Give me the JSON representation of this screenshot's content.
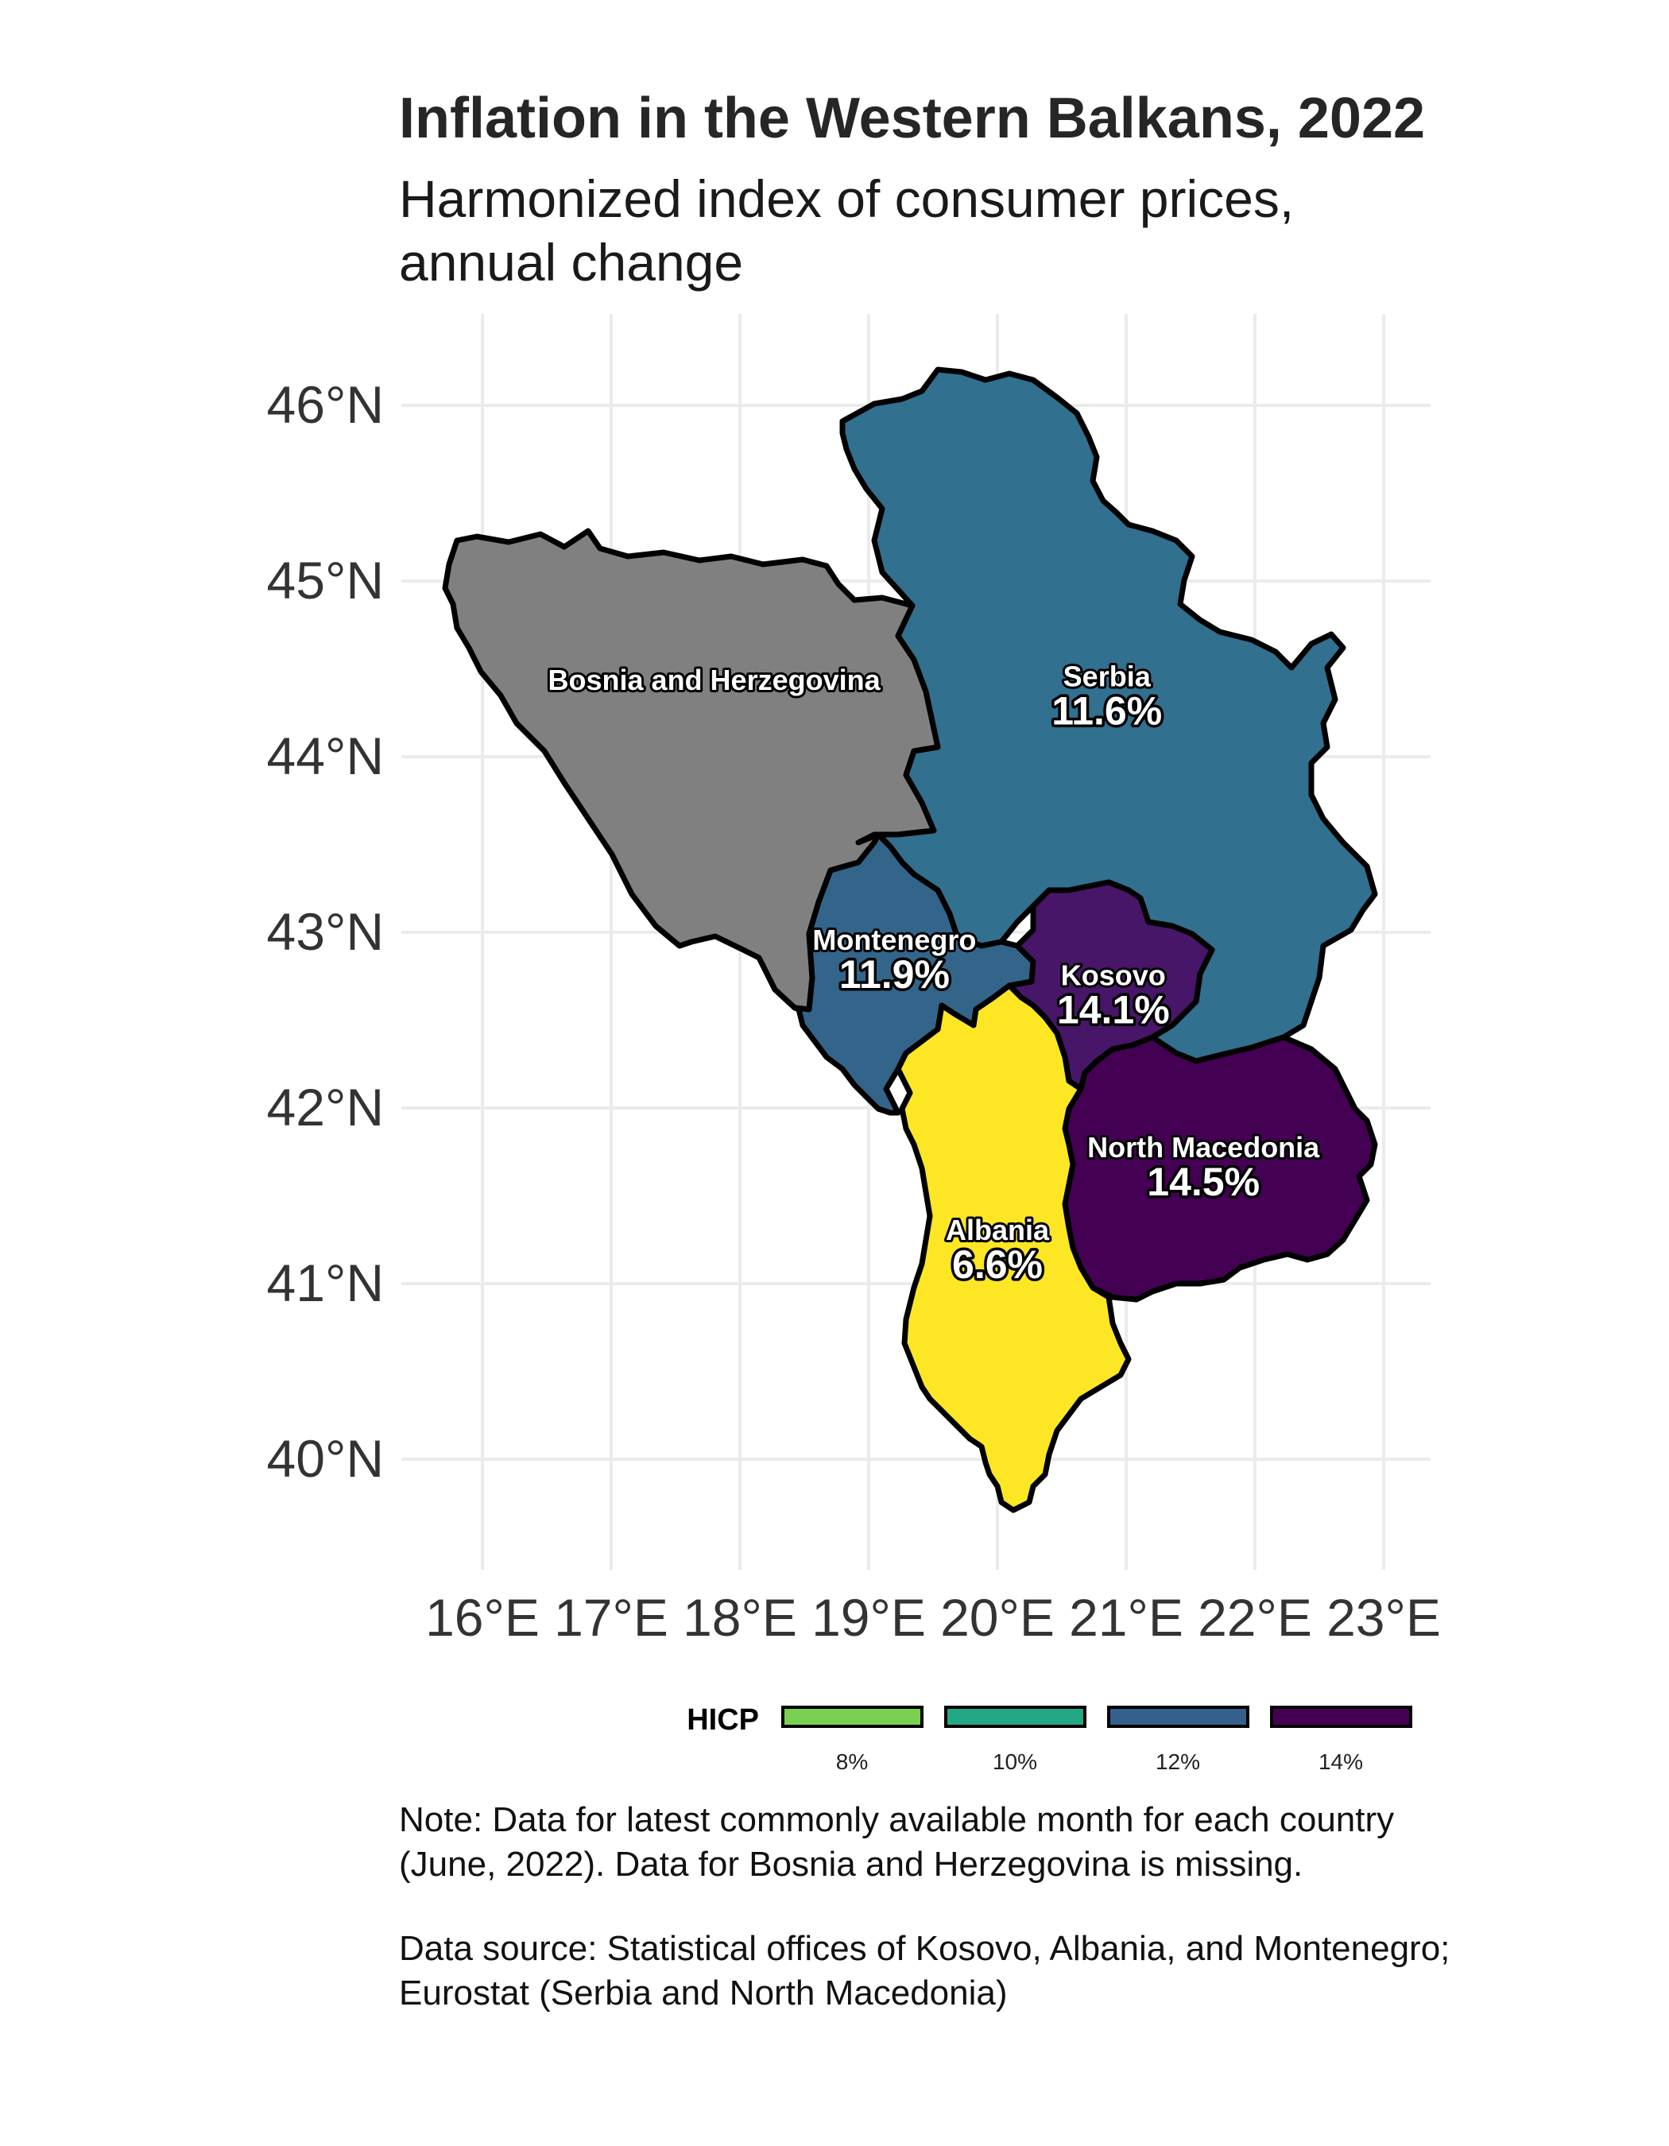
{
  "title": "Inflation in the Western Balkans, 2022",
  "subtitle_lines": [
    "Harmonized index of consumer prices,",
    "annual change"
  ],
  "axes": {
    "lat_labels": [
      {
        "lat": 46,
        "label": "46°N"
      },
      {
        "lat": 45,
        "label": "45°N"
      },
      {
        "lat": 44,
        "label": "44°N"
      },
      {
        "lat": 43,
        "label": "43°N"
      },
      {
        "lat": 42,
        "label": "42°N"
      },
      {
        "lat": 41,
        "label": "41°N"
      },
      {
        "lat": 40,
        "label": "40°N"
      }
    ],
    "lon_labels": [
      {
        "lon": 16,
        "label": "16°E"
      },
      {
        "lon": 17,
        "label": "17°E"
      },
      {
        "lon": 18,
        "label": "18°E"
      },
      {
        "lon": 19,
        "label": "19°E"
      },
      {
        "lon": 20,
        "label": "20°E"
      },
      {
        "lon": 21,
        "label": "21°E"
      },
      {
        "lon": 22,
        "label": "22°E"
      },
      {
        "lon": 23,
        "label": "23°E"
      }
    ],
    "lat_range": [
      39.5,
      46.5
    ],
    "lon_range": [
      15.7,
      23.3
    ],
    "grid": true
  },
  "regions": [
    {
      "id": "bosnia",
      "name": "Bosnia and Herzegovina",
      "value": null,
      "value_label": "",
      "color": "#808080",
      "label_lon": 17.8,
      "label_lat": 44.38
    },
    {
      "id": "serbia",
      "name": "Serbia",
      "value": 11.6,
      "value_label": "11.6%",
      "color": "#31708e",
      "label_lon": 20.85,
      "label_lat": 44.4
    },
    {
      "id": "montenegro",
      "name": "Montenegro",
      "value": 11.9,
      "value_label": "11.9%",
      "color": "#33658a",
      "label_lon": 19.2,
      "label_lat": 42.9
    },
    {
      "id": "kosovo",
      "name": "Kosovo",
      "value": 14.1,
      "value_label": "14.1%",
      "color": "#481668",
      "label_lon": 20.9,
      "label_lat": 42.7
    },
    {
      "id": "north_macedonia",
      "name": "North Macedonia",
      "value": 14.5,
      "value_label": "14.5%",
      "color": "#440154",
      "label_lon": 21.6,
      "label_lat": 41.72
    },
    {
      "id": "albania",
      "name": "Albania",
      "value": 6.6,
      "value_label": "6.6%",
      "color": "#fde725",
      "label_lon": 20.0,
      "label_lat": 41.25
    }
  ],
  "legend": {
    "title": "HICP",
    "items": [
      {
        "label": "8%",
        "color": "#7ad151"
      },
      {
        "label": "10%",
        "color": "#22a884"
      },
      {
        "label": "12%",
        "color": "#35608d"
      },
      {
        "label": "14%",
        "color": "#440154"
      }
    ]
  },
  "note_lines": [
    "Note: Data for latest commonly available month for each country",
    "(June, 2022). Data for Bosnia and Herzegovina is missing."
  ],
  "source_lines": [
    "Data source: Statistical offices of Kosovo, Albania, and Montenegro;",
    "Eurostat (Serbia and North Macedonia)"
  ]
}
